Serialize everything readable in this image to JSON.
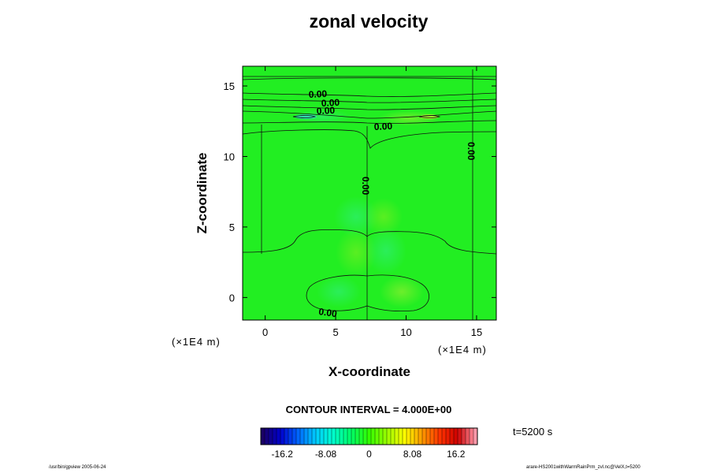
{
  "chart_data": {
    "type": "heatmap",
    "title": "zonal velocity",
    "xlabel": "X-coordinate",
    "ylabel": "Z-coordinate",
    "x_unit": "(×1E4 m)",
    "y_unit": "(×1E4 m)",
    "xlim": [
      -1.6,
      16.4
    ],
    "ylim": [
      -1.6,
      16.4
    ],
    "x_ticks": [
      0,
      5,
      10,
      15
    ],
    "y_ticks": [
      0,
      5,
      10,
      15
    ],
    "contour_interval_label": "CONTOUR INTERVAL = 4.000E+00",
    "contour_labels": [
      "0.00",
      "0.00",
      "0.00",
      "0.00",
      "0.00",
      "0.00",
      "0.00"
    ],
    "colorbar": {
      "ticks": [
        "-16.2",
        "-8.08",
        "0",
        "8.08",
        "16.2"
      ],
      "min": -20.2,
      "max": 20.2,
      "colors": [
        "#1a0066",
        "#0000cc",
        "#0066ff",
        "#00ccff",
        "#00ffcc",
        "#00ff66",
        "#33ff00",
        "#99ff00",
        "#ffff00",
        "#ff9900",
        "#ff3300",
        "#cc0000",
        "#ff99aa"
      ]
    },
    "field_color": "#22ee22",
    "time_label": "t=5200 s"
  },
  "footer": {
    "left": "/usr/bin/gpview 2005-06-24",
    "right": "arare-HS2001withWarmRainPrm_zvl.nc@VelX,t=5200"
  }
}
